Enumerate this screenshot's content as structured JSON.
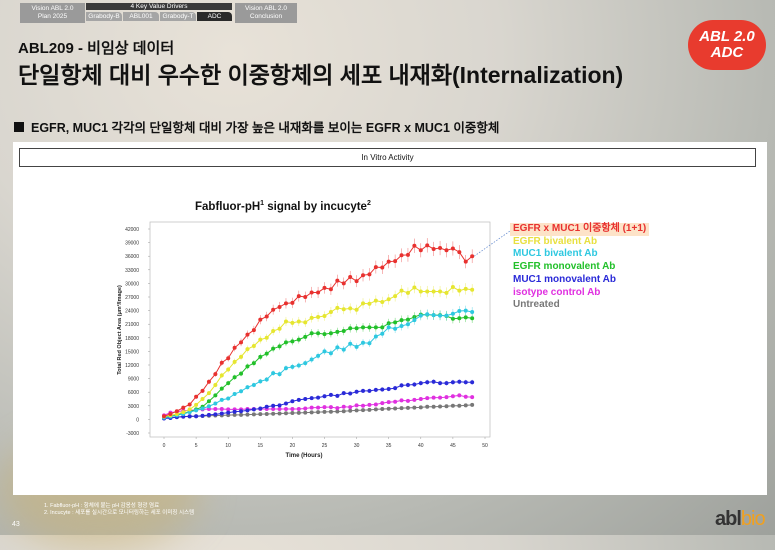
{
  "nav": {
    "left": "Vision ABL 2.0\nPlan 2025",
    "center": "4 Key Value Drivers",
    "subs": [
      "Grabody-B",
      "ABL001",
      "Grabody-T",
      "ADC"
    ],
    "active_sub": "ADC",
    "right": "Vision ABL 2.0\nConclusion"
  },
  "header": {
    "subtitle": "ABL209 - 비임상 데이터",
    "title": "단일항체 대비 우수한 이중항체의 세포 내재화(Internalization)",
    "badge_line1": "ABL 2.0",
    "badge_line2": "ADC"
  },
  "bullet": "EGFR, MUC1 각각의 단일항체 대비 가장 높은 내재화를 보이는 EGFR x MUC1 이중항체",
  "section_label": "In Vitro Activity",
  "chart_data": {
    "type": "line",
    "title": "Fabfluor-pH",
    "title_sup1": "1",
    "title_mid": " signal by incucyte",
    "title_sup2": "2",
    "xlabel": "Time (Hours)",
    "ylabel": "Total Red Object Area (μm²/Image)",
    "xlim": [
      0,
      50
    ],
    "ylim": [
      -3000,
      42000
    ],
    "xticks": [
      0,
      5,
      10,
      15,
      20,
      25,
      30,
      35,
      40,
      45,
      50
    ],
    "yticks": [
      42000,
      39000,
      36000,
      33000,
      30000,
      27000,
      24000,
      21000,
      18000,
      15000,
      12000,
      9000,
      6000,
      3000,
      0,
      -3000
    ],
    "grid": false,
    "legend_placement": "right",
    "x": [
      0,
      1,
      2,
      3,
      4,
      5,
      6,
      7,
      8,
      9,
      10,
      11,
      12,
      13,
      14,
      15,
      16,
      17,
      18,
      19,
      20,
      21,
      22,
      23,
      24,
      25,
      26,
      27,
      28,
      29,
      30,
      31,
      32,
      33,
      34,
      35,
      36,
      37,
      38,
      39,
      40,
      41,
      42,
      43,
      44,
      45,
      46,
      47,
      48
    ],
    "series": [
      {
        "name": "EGFR x MUC1 이중항체 (1+1)",
        "color": "#e8312f",
        "values": [
          700,
          1200,
          1800,
          2600,
          3300,
          5000,
          6300,
          8300,
          10000,
          12500,
          13500,
          15800,
          17000,
          18700,
          19700,
          22000,
          22700,
          24200,
          24800,
          25600,
          25700,
          27200,
          27000,
          28000,
          28000,
          29000,
          28700,
          30600,
          30000,
          31400,
          30500,
          31800,
          32000,
          33600,
          33500,
          34800,
          34900,
          36200,
          36300,
          38300,
          37300,
          38400,
          37600,
          37800,
          37300,
          37700,
          36900,
          34800,
          36000
        ]
      },
      {
        "name": "EGFR bivalent Ab",
        "color": "#e6e630",
        "values": [
          600,
          900,
          1200,
          1600,
          2200,
          3200,
          4500,
          5800,
          7600,
          9700,
          11000,
          12700,
          13800,
          15500,
          16200,
          17600,
          18000,
          19500,
          20000,
          21600,
          21300,
          21600,
          21400,
          22400,
          22600,
          22800,
          23700,
          24600,
          24300,
          24500,
          24200,
          25600,
          25500,
          26200,
          25900,
          26500,
          27200,
          28400,
          27900,
          29100,
          28200,
          28200,
          28200,
          28200,
          27900,
          29200,
          28400,
          28800,
          28600
        ]
      },
      {
        "name": "MUC1 bivalent Ab",
        "color": "#2ec8e0",
        "values": [
          400,
          600,
          900,
          1200,
          1600,
          2000,
          2400,
          2900,
          3500,
          4300,
          4600,
          5600,
          6200,
          7100,
          7600,
          8400,
          8800,
          10200,
          10000,
          11300,
          11600,
          11900,
          12400,
          13200,
          14000,
          15000,
          14600,
          15900,
          15400,
          16700,
          16000,
          16900,
          16800,
          18300,
          18900,
          20300,
          20000,
          20600,
          21000,
          21900,
          22900,
          23200,
          23000,
          22900,
          22900,
          23300,
          23900,
          24000,
          23700
        ]
      },
      {
        "name": "EGFR monovalent Ab",
        "color": "#22c02a",
        "values": [
          500,
          800,
          1000,
          1300,
          1700,
          2200,
          2800,
          4000,
          5300,
          6800,
          8000,
          9300,
          10100,
          11700,
          12400,
          13800,
          14500,
          15600,
          16100,
          17000,
          17200,
          17600,
          18200,
          19000,
          19000,
          18800,
          19000,
          19300,
          19500,
          20100,
          20100,
          20300,
          20300,
          20300,
          20300,
          21200,
          21400,
          21900,
          22000,
          22600,
          23100,
          23100,
          23000,
          23000,
          22800,
          22200,
          22300,
          22500,
          22300
        ]
      },
      {
        "name": "MUC1 monovalent Ab",
        "color": "#2a2ad8",
        "values": [
          200,
          300,
          500,
          600,
          700,
          700,
          800,
          1000,
          1100,
          1300,
          1500,
          1700,
          1800,
          2000,
          2200,
          2400,
          2800,
          3000,
          3100,
          3500,
          4000,
          4300,
          4500,
          4700,
          4800,
          5100,
          5400,
          5200,
          5800,
          5700,
          6100,
          6300,
          6300,
          6500,
          6600,
          6700,
          6900,
          7500,
          7600,
          7700,
          8000,
          8200,
          8300,
          8000,
          8000,
          8200,
          8300,
          8200,
          8200
        ]
      },
      {
        "name": "isotype control Ab",
        "color": "#e030e0",
        "values": [
          900,
          1500,
          1700,
          1900,
          2000,
          2100,
          2200,
          2300,
          2300,
          2300,
          2200,
          2200,
          2200,
          2300,
          2300,
          2300,
          2300,
          2300,
          2300,
          2300,
          2300,
          2300,
          2400,
          2600,
          2600,
          2700,
          2700,
          2500,
          2800,
          2700,
          3100,
          3000,
          3200,
          3300,
          3600,
          3800,
          3900,
          4200,
          4100,
          4300,
          4500,
          4700,
          4800,
          4800,
          4900,
          5100,
          5300,
          5000,
          4900
        ]
      },
      {
        "name": "Untreated",
        "color": "#777777",
        "values": [
          300,
          400,
          500,
          600,
          650,
          700,
          750,
          800,
          850,
          900,
          950,
          1000,
          1000,
          1050,
          1100,
          1150,
          1200,
          1250,
          1300,
          1350,
          1400,
          1450,
          1500,
          1550,
          1600,
          1650,
          1700,
          1750,
          1800,
          1900,
          2000,
          2050,
          2100,
          2200,
          2300,
          2350,
          2400,
          2500,
          2550,
          2600,
          2650,
          2800,
          2800,
          2850,
          2900,
          3000,
          3000,
          3100,
          3200
        ]
      }
    ]
  },
  "footnotes": [
    "1. Fabfluor-pH : 항체에 붙는 pH 감응성 형광 염료",
    "2. Incucyte : 세포를 실시간으로 모니터링하는 세포 이미징 시스템"
  ],
  "page_number": "43",
  "logo": {
    "part1": "abl",
    "part2": "bio"
  }
}
